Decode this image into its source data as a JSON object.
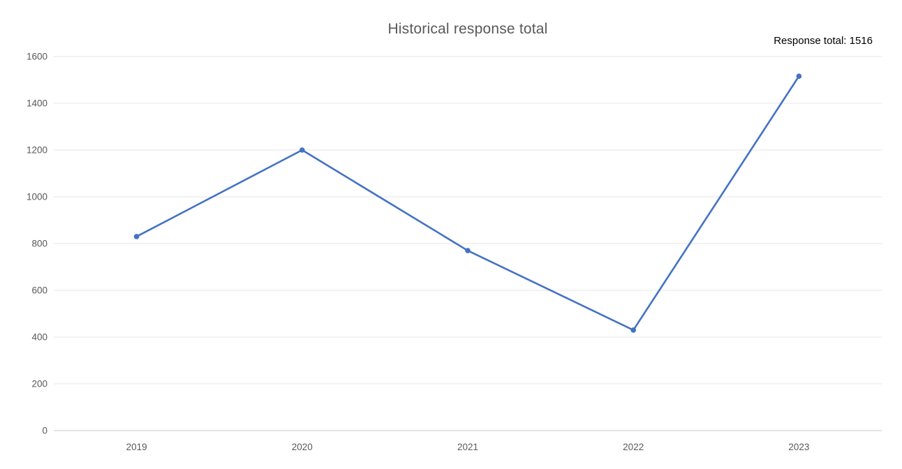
{
  "chart": {
    "title": "Historical response total",
    "annotation": "Response total: 1516"
  },
  "chart_data": {
    "type": "line",
    "title": "Historical response total",
    "categories": [
      "2019",
      "2020",
      "2021",
      "2022",
      "2023"
    ],
    "series": [
      {
        "name": "Response total",
        "values": [
          830,
          1200,
          770,
          430,
          1516
        ]
      }
    ],
    "xlabel": "",
    "ylabel": "",
    "ylim": [
      0,
      1600
    ],
    "ytick_step": 200,
    "grid": true,
    "legend": "none",
    "marker": "circle",
    "annotation": {
      "text": "Response total: 1516",
      "position": "top-right"
    },
    "colors": {
      "line": "#4472C4",
      "gridline": "#E4E4E4",
      "axis_line": "#C9C9C9",
      "tick_label": "#595959",
      "title": "#595959",
      "annotation_text": "#000000",
      "background": "#FFFFFF"
    }
  }
}
